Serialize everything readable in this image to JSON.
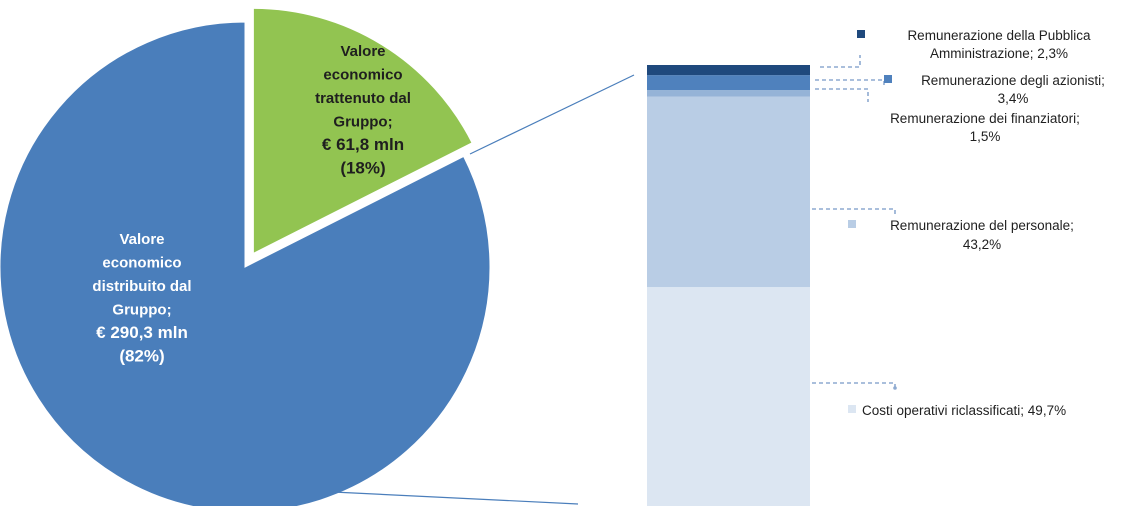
{
  "chart_data": [
    {
      "type": "pie",
      "slices": [
        {
          "name": "Valore economico distribuito dal Gruppo",
          "value": 290.3,
          "percent": 82,
          "label_lines": [
            "Valore",
            "economico",
            "distribuito dal",
            "Gruppo;",
            "€ 290,3 mln",
            "(82%)"
          ],
          "color": "#4a7ebb",
          "text_color": "#ffffff"
        },
        {
          "name": "Valore economico trattenuto dal Gruppo",
          "value": 61.8,
          "percent": 18,
          "label_lines": [
            "Valore",
            "economico",
            "trattenuto dal",
            "Gruppo;",
            "€ 61,8 mln",
            "(18%)"
          ],
          "color": "#92c451",
          "text_color": "#1f1f1f",
          "exploded": true
        }
      ]
    },
    {
      "type": "bar",
      "stacked": true,
      "orientation": "vertical",
      "segments": [
        {
          "label_lines": [
            "Costi operativi riclassificati; 49,7%"
          ],
          "value": 49.7,
          "color": "#dce6f2"
        },
        {
          "label_lines": [
            "Remunerazione  del personale;",
            "43,2%"
          ],
          "value": 43.2,
          "color": "#b9cde5"
        },
        {
          "label_lines": [
            "Remunerazione  dei  finanziatori;",
            "1,5%"
          ],
          "value": 1.5,
          "color": "#95b3d7"
        },
        {
          "label_lines": [
            "Remunerazione degli azionisti;",
            "3,4%"
          ],
          "value": 3.4,
          "color": "#4f81bd"
        },
        {
          "label_lines": [
            "Remunerazione della Pubblica",
            "Amministrazione; 2,3%"
          ],
          "value": 2.3,
          "color": "#1f497d"
        }
      ]
    }
  ]
}
